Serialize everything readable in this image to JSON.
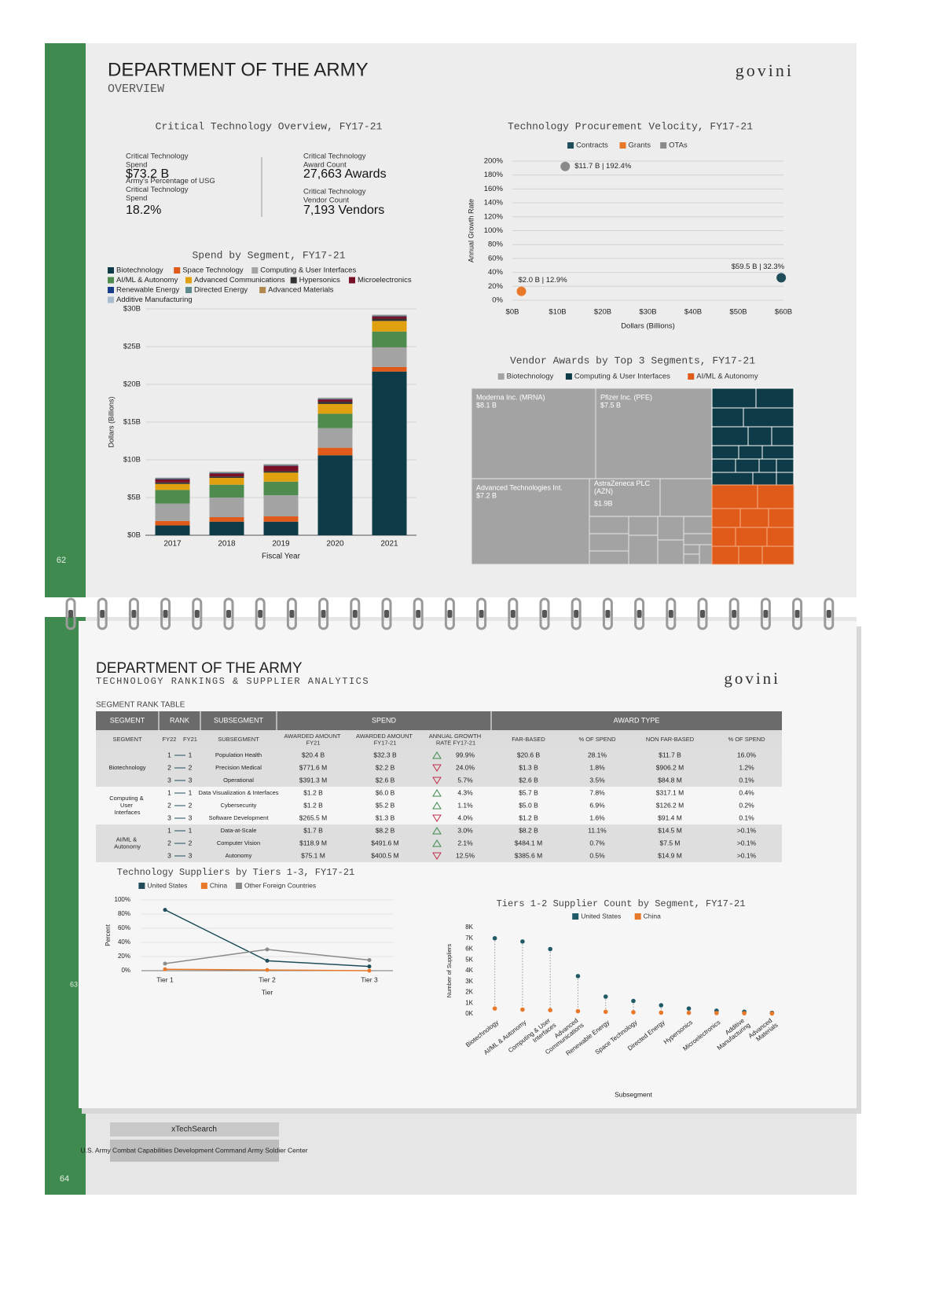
{
  "page_top": {
    "title": "DEPARTMENT OF THE ARMY",
    "subtitle": "OVERVIEW",
    "logo": "govini",
    "page_number": "62"
  },
  "overview": {
    "title": "Critical Technology Overview, FY17-21",
    "stats": [
      {
        "label": "Critical Technology Spend",
        "value": "$73.2 B"
      },
      {
        "label": "Army's Percentage of USG Critical Technology Spend",
        "value": "18.2%"
      },
      {
        "label": "Critical Technology Award Count",
        "value": "27,663 Awards"
      },
      {
        "label": "Critical Technology Vendor Count",
        "value": "7,193 Vendors"
      }
    ]
  },
  "chart_data": [
    {
      "type": "bar",
      "stacked": true,
      "title": "Spend by Segment, FY17-21",
      "x_label": "Fiscal Year",
      "y_label": "Dollars (Billions)",
      "categories": [
        "2017",
        "2018",
        "2019",
        "2020",
        "2021"
      ],
      "series": [
        {
          "name": "Biotechnology",
          "color": "#0d3b47",
          "values": [
            1.3,
            1.8,
            1.8,
            10.6,
            21.7
          ]
        },
        {
          "name": "Space Technology",
          "color": "#e05a1a",
          "values": [
            0.6,
            0.6,
            0.7,
            1.0,
            0.6
          ]
        },
        {
          "name": "Computing & User Interfaces",
          "color": "#a3a3a3",
          "values": [
            2.3,
            2.6,
            2.8,
            2.6,
            2.6
          ]
        },
        {
          "name": "AI/ML & Autonomy",
          "color": "#4f8a4f",
          "values": [
            1.8,
            1.7,
            1.8,
            1.9,
            2.1
          ]
        },
        {
          "name": "Advanced Communications",
          "color": "#e0a010",
          "values": [
            0.8,
            0.9,
            1.2,
            1.3,
            1.4
          ]
        },
        {
          "name": "Hypersonics",
          "color": "#333333",
          "values": [
            0.2,
            0.2,
            0.2,
            0.3,
            0.3
          ]
        },
        {
          "name": "Microelectronics",
          "color": "#7a1025",
          "values": [
            0.4,
            0.4,
            0.7,
            0.3,
            0.3
          ]
        },
        {
          "name": "Renewable Energy",
          "color": "#1a3c8c",
          "values": [
            0.05,
            0.05,
            0.05,
            0.05,
            0.05
          ]
        },
        {
          "name": "Directed Energy",
          "color": "#5d8a8f",
          "values": [
            0.1,
            0.1,
            0.1,
            0.1,
            0.1
          ]
        },
        {
          "name": "Advanced Materials",
          "color": "#b08850",
          "values": [
            0.05,
            0.05,
            0.05,
            0.05,
            0.05
          ]
        },
        {
          "name": "Additive Manufacturing",
          "color": "#a9bbd0",
          "values": [
            0.05,
            0.05,
            0.05,
            0.05,
            0.05
          ]
        }
      ],
      "ylim": [
        0,
        30
      ],
      "yticks": [
        {
          "value": 0,
          "label": "$0B"
        },
        {
          "value": 5,
          "label": "$5B"
        },
        {
          "value": 10,
          "label": "$10B"
        },
        {
          "value": 15,
          "label": "$15B"
        },
        {
          "value": 20,
          "label": "$20B"
        },
        {
          "value": 25,
          "label": "$25B"
        },
        {
          "value": 30,
          "label": "$30B"
        }
      ],
      "grid": true
    },
    {
      "type": "scatter",
      "title": "Technology Procurement Velocity, FY17-21",
      "x_label": "Dollars (Billions)",
      "y_label": "Annual Growth Rate",
      "series": [
        {
          "name": "Contracts",
          "color": "#1f4e5a",
          "x": [
            59.5
          ],
          "values": [
            32.3
          ],
          "value_labels": [
            "$59.5 B | 32.3%"
          ]
        },
        {
          "name": "Grants",
          "color": "#e8792a",
          "x": [
            2.0
          ],
          "values": [
            12.9
          ],
          "value_labels": [
            "$2.0 B | 12.9%"
          ]
        },
        {
          "name": "OTAs",
          "color": "#8a8a8a",
          "x": [
            11.7
          ],
          "values": [
            192.4
          ],
          "value_labels": [
            "$11.7 B | 192.4%"
          ]
        }
      ],
      "xlim": [
        0,
        60
      ],
      "xticks": [
        {
          "value": 0,
          "label": "$0B"
        },
        {
          "value": 10,
          "label": "$10B"
        },
        {
          "value": 20,
          "label": "$20B"
        },
        {
          "value": 30,
          "label": "$30B"
        },
        {
          "value": 40,
          "label": "$40B"
        },
        {
          "value": 50,
          "label": "$50B"
        },
        {
          "value": 60,
          "label": "$60B"
        }
      ],
      "ylim": [
        0,
        200
      ],
      "yticks": [
        {
          "value": 0,
          "label": "0%"
        },
        {
          "value": 20,
          "label": "20%"
        },
        {
          "value": 40,
          "label": "40%"
        },
        {
          "value": 60,
          "label": "60%"
        },
        {
          "value": 80,
          "label": "80%"
        },
        {
          "value": 100,
          "label": "100%"
        },
        {
          "value": 120,
          "label": "120%"
        },
        {
          "value": 140,
          "label": "140%"
        },
        {
          "value": 160,
          "label": "160%"
        },
        {
          "value": 180,
          "label": "180%"
        },
        {
          "value": 200,
          "label": "200%"
        }
      ],
      "grid": true
    },
    {
      "type": "treemap",
      "title": "Vendor Awards by Top 3 Segments, FY17-21",
      "segments": [
        {
          "name": "Biotechnology",
          "color": "#a3a3a3"
        },
        {
          "name": "Computing & User Interfaces",
          "color": "#0d3b47"
        },
        {
          "name": "AI/ML & Autonomy",
          "color": "#e05a1a"
        }
      ],
      "categories": [
        "Moderna Inc. (MRNA)",
        "Pfizer Inc. (PFE)",
        "Advanced Technologies Int.",
        "AstraZeneca PLC (AZN)"
      ],
      "values": [
        8.1,
        7.5,
        7.2,
        1.9
      ],
      "value_labels": [
        "$8.1 B",
        "$7.5 B",
        "$7.2 B",
        "$1.9B"
      ]
    },
    {
      "type": "line",
      "title": "Technology Suppliers by Tiers 1-3, FY17-21",
      "x_label": "Tier",
      "y_label": "Percent",
      "categories": [
        "Tier 1",
        "Tier 2",
        "Tier 3"
      ],
      "series": [
        {
          "name": "United States",
          "color": "#1f4e5a",
          "values": [
            86,
            14,
            6
          ]
        },
        {
          "name": "China",
          "color": "#e8792a",
          "values": [
            2,
            1,
            0
          ]
        },
        {
          "name": "Other Foreign Countries",
          "color": "#8a8a8a",
          "values": [
            10,
            30,
            15
          ]
        }
      ],
      "ylim": [
        0,
        100
      ],
      "yticks": [
        {
          "value": 0,
          "label": "0%"
        },
        {
          "value": 20,
          "label": "20%"
        },
        {
          "value": 40,
          "label": "40%"
        },
        {
          "value": 60,
          "label": "60%"
        },
        {
          "value": 80,
          "label": "80%"
        },
        {
          "value": 100,
          "label": "100%"
        }
      ],
      "grid": true
    },
    {
      "type": "lollipop",
      "title": "Tiers 1-2 Supplier Count by Segment, FY17-21",
      "x_label": "Subsegment",
      "y_label": "Number of Suppliers",
      "categories": [
        "Biotechnology",
        "AI/ML & Autonomy",
        "Computing & User Interfaces",
        "Advanced Communications",
        "Renewable Energy",
        "Space Technology",
        "Directed Energy",
        "Hypersonics",
        "Microelectronics",
        "Additive Manufacturing",
        "Advanced Materials"
      ],
      "series": [
        {
          "name": "United States",
          "color": "#1f5a66",
          "values": [
            7000,
            6700,
            6000,
            3500,
            1600,
            1200,
            800,
            500,
            300,
            200,
            100
          ]
        },
        {
          "name": "China",
          "color": "#e8792a",
          "values": [
            500,
            400,
            350,
            250,
            200,
            150,
            120,
            100,
            80,
            60,
            40
          ]
        }
      ],
      "ylim": [
        0,
        8000
      ],
      "yticks": [
        {
          "value": 0,
          "label": "0K"
        },
        {
          "value": 1000,
          "label": "1K"
        },
        {
          "value": 2000,
          "label": "2K"
        },
        {
          "value": 3000,
          "label": "3K"
        },
        {
          "value": 4000,
          "label": "4K"
        },
        {
          "value": 5000,
          "label": "5K"
        },
        {
          "value": 6000,
          "label": "6K"
        },
        {
          "value": 7000,
          "label": "7K"
        },
        {
          "value": 8000,
          "label": "8K"
        }
      ]
    }
  ],
  "page_bottom": {
    "title": "DEPARTMENT OF THE ARMY",
    "subtitle": "TECHNOLOGY RANKINGS & SUPPLIER ANALYTICS",
    "logo": "govini",
    "page_number": "63"
  },
  "rank_table": {
    "title": "SEGMENT RANK TABLE",
    "header": [
      "SEGMENT",
      "RANK",
      "SUBSEGMENT",
      "SPEND",
      "AWARD TYPE"
    ],
    "subheader": [
      "SEGMENT",
      "FY22",
      "FY21",
      "SUBSEGMENT",
      "AWARDED AMOUNT FY21",
      "AWARDED AMOUNT FY17-21",
      "ANNUAL GROWTH RATE FY17-21",
      "FAR-BASED",
      "% OF SPEND",
      "NON FAR-BASED",
      "% OF SPEND"
    ],
    "groups": [
      {
        "segment": "Biotechnology",
        "rows": [
          [
            "1",
            "1",
            "Population Health",
            "$20.4 B",
            "$32.3 B",
            "99.9%",
            "$20.6 B",
            "28.1%",
            "$11.7 B",
            "16.0%"
          ],
          [
            "2",
            "2",
            "Precision Medical",
            "$771.6 M",
            "$2.2 B",
            "24.0%",
            "$1.3 B",
            "1.8%",
            "$906.2 M",
            "1.2%"
          ],
          [
            "3",
            "3",
            "Operational",
            "$391.3 M",
            "$2.6 B",
            "5.7%",
            "$2.6 B",
            "3.5%",
            "$84.8 M",
            "0.1%"
          ]
        ],
        "trends": [
          "up",
          "down",
          "down"
        ]
      },
      {
        "segment": "Computing & User Interfaces",
        "rows": [
          [
            "1",
            "1",
            "Data Visualization & Interfaces",
            "$1.2 B",
            "$6.0 B",
            "4.3%",
            "$5.7 B",
            "7.8%",
            "$317.1 M",
            "0.4%"
          ],
          [
            "2",
            "2",
            "Cybersecurity",
            "$1.2 B",
            "$5.2 B",
            "1.1%",
            "$5.0 B",
            "6.9%",
            "$126.2 M",
            "0.2%"
          ],
          [
            "3",
            "3",
            "Software Development",
            "$265.5 M",
            "$1.3 B",
            "4.0%",
            "$1.2 B",
            "1.6%",
            "$91.4 M",
            "0.1%"
          ]
        ],
        "trends": [
          "up",
          "up",
          "down"
        ]
      },
      {
        "segment": "AI/ML & Autonomy",
        "rows": [
          [
            "1",
            "1",
            "Data-at-Scale",
            "$1.7 B",
            "$8.2 B",
            "3.0%",
            "$8.2 B",
            "11.1%",
            "$14.5 M",
            ">0.1%"
          ],
          [
            "2",
            "2",
            "Computer Vision",
            "$118.9 M",
            "$491.6 M",
            "2.1%",
            "$484.1 M",
            "0.7%",
            "$7.5 M",
            ">0.1%"
          ],
          [
            "3",
            "3",
            "Autonomy",
            "$75.1 M",
            "$400.5 M",
            "12.5%",
            "$385.6 M",
            "0.5%",
            "$14.9 M",
            ">0.1%"
          ]
        ],
        "trends": [
          "up",
          "up",
          "down"
        ]
      }
    ]
  },
  "page_back": {
    "rows": [
      "xTechSearch",
      "U.S. Army Combat Capabilities Development Command Army Soldier Center"
    ],
    "page_number": "64"
  }
}
